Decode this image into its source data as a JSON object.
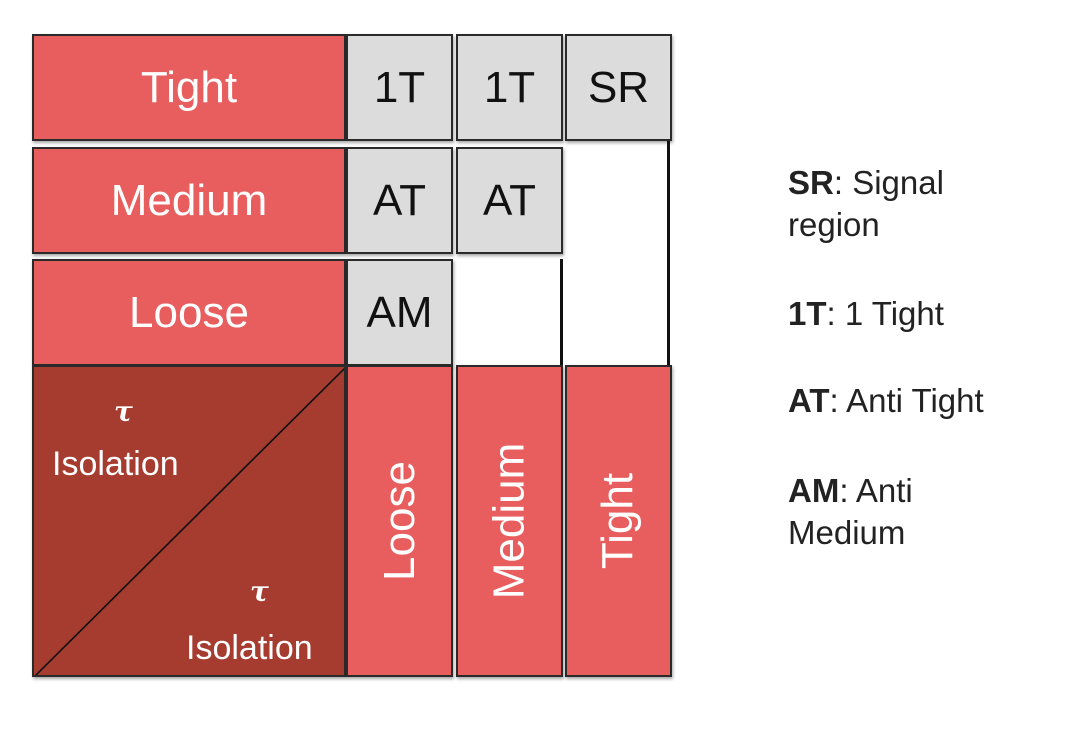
{
  "rows": [
    "Tight",
    "Medium",
    "Loose"
  ],
  "columns": [
    "Loose",
    "Medium",
    "Tight"
  ],
  "cells": {
    "tight_row": [
      "1T",
      "1T",
      "SR"
    ],
    "medium_row": [
      "AT",
      "AT"
    ],
    "loose_row": [
      "AM"
    ]
  },
  "corner": {
    "top_symbol": "τ",
    "top_label": "Isolation",
    "bottom_symbol": "τ",
    "bottom_label": "Isolation"
  },
  "legend": [
    {
      "key": "SR",
      "sep": ": ",
      "text_line1": "Signal",
      "text_line2": "region"
    },
    {
      "key": "1T",
      "sep": ": ",
      "text_line1": "1 Tight"
    },
    {
      "key": "AT",
      "sep": ": ",
      "text_line1": "Anti Tight"
    },
    {
      "key": "AM",
      "sep": ": ",
      "text_line1": "Anti",
      "text_line2": "Medium"
    }
  ],
  "colors": {
    "label_red": "#e85e5e",
    "corner_brown": "#a53c2f",
    "cell_grey": "#dcdcdc"
  }
}
